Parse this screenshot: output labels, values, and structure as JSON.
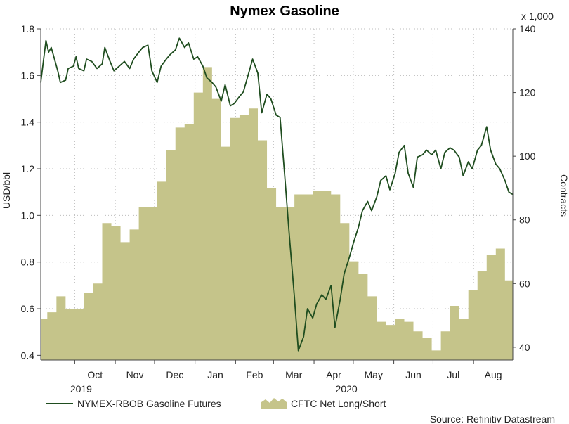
{
  "chart_data": {
    "type": "line+area",
    "title": "Nymex Gasoline",
    "ylabel": "USD/bbl",
    "y2label": "Contracts",
    "y2_multiplier_label": "x 1,000",
    "ylim": [
      0.38,
      1.8
    ],
    "y2lim": [
      36,
      140
    ],
    "yticks": [
      "1.8",
      "1.6",
      "1.4",
      "1.2",
      "1.0",
      "0.8",
      "0.6",
      "0.4"
    ],
    "y2ticks": [
      "140",
      "120",
      "100",
      "80",
      "60",
      "40"
    ],
    "month_labels": [
      "Oct",
      "Nov",
      "Dec",
      "Jan",
      "Feb",
      "Mar",
      "Apr",
      "May",
      "Jun",
      "Jul",
      "Aug"
    ],
    "year_labels": [
      "2019",
      "2020"
    ],
    "x_start": "2019-09-05",
    "x_end": "2020-08-31",
    "grid": true,
    "legend_position": "bottom",
    "source": "Source: Refinitiv Datastream",
    "series": [
      {
        "name": "NYMEX-RBOB Gasoline Futures",
        "axis": "left",
        "color": "#1f4d1f",
        "x": [
          "2019-09-05",
          "2019-09-09",
          "2019-09-11",
          "2019-09-13",
          "2019-09-16",
          "2019-09-18",
          "2019-09-20",
          "2019-09-24",
          "2019-09-26",
          "2019-09-30",
          "2019-10-02",
          "2019-10-04",
          "2019-10-08",
          "2019-10-10",
          "2019-10-14",
          "2019-10-18",
          "2019-10-22",
          "2019-10-24",
          "2019-10-28",
          "2019-10-31",
          "2019-11-04",
          "2019-11-08",
          "2019-11-12",
          "2019-11-15",
          "2019-11-19",
          "2019-11-22",
          "2019-11-26",
          "2019-11-29",
          "2019-12-03",
          "2019-12-06",
          "2019-12-10",
          "2019-12-13",
          "2019-12-17",
          "2019-12-20",
          "2019-12-24",
          "2019-12-27",
          "2019-12-31",
          "2020-01-03",
          "2020-01-07",
          "2020-01-10",
          "2020-01-14",
          "2020-01-17",
          "2020-01-21",
          "2020-01-24",
          "2020-01-28",
          "2020-01-31",
          "2020-02-04",
          "2020-02-07",
          "2020-02-11",
          "2020-02-14",
          "2020-02-18",
          "2020-02-21",
          "2020-02-25",
          "2020-02-28",
          "2020-03-03",
          "2020-03-06",
          "2020-03-10",
          "2020-03-13",
          "2020-03-17",
          "2020-03-20",
          "2020-03-24",
          "2020-03-27",
          "2020-03-31",
          "2020-04-03",
          "2020-04-07",
          "2020-04-10",
          "2020-04-14",
          "2020-04-17",
          "2020-04-21",
          "2020-04-24",
          "2020-04-28",
          "2020-05-01",
          "2020-05-05",
          "2020-05-08",
          "2020-05-12",
          "2020-05-15",
          "2020-05-19",
          "2020-05-22",
          "2020-05-26",
          "2020-05-29",
          "2020-06-02",
          "2020-06-05",
          "2020-06-09",
          "2020-06-12",
          "2020-06-16",
          "2020-06-19",
          "2020-06-23",
          "2020-06-26",
          "2020-06-30",
          "2020-07-03",
          "2020-07-07",
          "2020-07-10",
          "2020-07-14",
          "2020-07-17",
          "2020-07-21",
          "2020-07-24",
          "2020-07-28",
          "2020-07-31",
          "2020-08-04",
          "2020-08-07",
          "2020-08-11",
          "2020-08-14",
          "2020-08-18",
          "2020-08-21",
          "2020-08-25",
          "2020-08-28",
          "2020-08-31"
        ],
        "values": [
          1.57,
          1.75,
          1.7,
          1.72,
          1.66,
          1.62,
          1.57,
          1.58,
          1.63,
          1.64,
          1.68,
          1.63,
          1.62,
          1.67,
          1.66,
          1.63,
          1.65,
          1.72,
          1.66,
          1.62,
          1.64,
          1.66,
          1.63,
          1.67,
          1.7,
          1.72,
          1.73,
          1.62,
          1.57,
          1.64,
          1.67,
          1.69,
          1.71,
          1.76,
          1.72,
          1.74,
          1.67,
          1.68,
          1.64,
          1.59,
          1.57,
          1.55,
          1.49,
          1.56,
          1.47,
          1.48,
          1.51,
          1.53,
          1.61,
          1.67,
          1.61,
          1.44,
          1.52,
          1.5,
          1.43,
          1.42,
          1.14,
          0.92,
          0.65,
          0.42,
          0.48,
          0.6,
          0.56,
          0.62,
          0.66,
          0.64,
          0.7,
          0.52,
          0.64,
          0.75,
          0.82,
          0.88,
          0.95,
          1.02,
          1.06,
          1.02,
          1.08,
          1.15,
          1.17,
          1.11,
          1.18,
          1.27,
          1.3,
          1.18,
          1.12,
          1.25,
          1.26,
          1.28,
          1.26,
          1.28,
          1.2,
          1.27,
          1.29,
          1.28,
          1.25,
          1.17,
          1.23,
          1.2,
          1.28,
          1.3,
          1.38,
          1.28,
          1.22,
          1.2,
          1.15,
          1.1,
          1.09
        ]
      },
      {
        "name": "CFTC Net Long/Short",
        "axis": "right",
        "color": "#c5c48a",
        "x": [
          "2019-09-03",
          "2019-09-10",
          "2019-09-17",
          "2019-09-24",
          "2019-10-01",
          "2019-10-08",
          "2019-10-15",
          "2019-10-22",
          "2019-10-29",
          "2019-11-05",
          "2019-11-12",
          "2019-11-19",
          "2019-11-26",
          "2019-12-03",
          "2019-12-10",
          "2019-12-17",
          "2019-12-24",
          "2019-12-31",
          "2020-01-07",
          "2020-01-14",
          "2020-01-21",
          "2020-01-28",
          "2020-02-04",
          "2020-02-11",
          "2020-02-18",
          "2020-02-25",
          "2020-03-03",
          "2020-03-10",
          "2020-03-17",
          "2020-03-24",
          "2020-03-31",
          "2020-04-07",
          "2020-04-14",
          "2020-04-21",
          "2020-04-28",
          "2020-05-05",
          "2020-05-12",
          "2020-05-19",
          "2020-05-26",
          "2020-06-02",
          "2020-06-09",
          "2020-06-16",
          "2020-06-23",
          "2020-06-30",
          "2020-07-07",
          "2020-07-14",
          "2020-07-21",
          "2020-07-28",
          "2020-08-04",
          "2020-08-11",
          "2020-08-18",
          "2020-08-25"
        ],
        "values": [
          49,
          51,
          56,
          52,
          52,
          57,
          60,
          79,
          78,
          73,
          77,
          84,
          84,
          92,
          102,
          109,
          110,
          120,
          128,
          118,
          103,
          112,
          113,
          115,
          105,
          90,
          84,
          84,
          88,
          88,
          89,
          89,
          88,
          79,
          67,
          63,
          56,
          48,
          47,
          49,
          48,
          45,
          43,
          39,
          45,
          53,
          49,
          58,
          64,
          69,
          71,
          61
        ]
      }
    ]
  }
}
